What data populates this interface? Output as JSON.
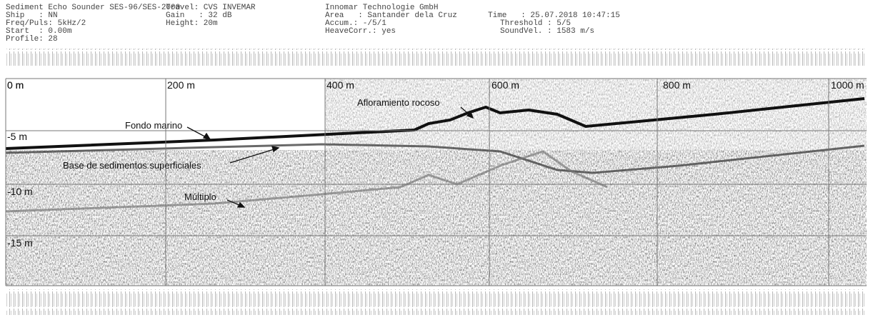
{
  "header": {
    "col1": [
      "Sediment Echo Sounder SES-96/SES-2000",
      "Ship   : NN",
      "Freq/Puls: 5kHz/2",
      "Start  : 0.00m",
      "Profile: 28"
    ],
    "col2": [
      "Travel: CVS INVEMAR",
      "Gain   : 32 dB",
      "Height: 20m"
    ],
    "col3": [
      "Innomar Technologie GmbH",
      "Area   : Santander dela Cruz",
      "Accum.: -/5/1",
      "HeaveCorr.: yes"
    ],
    "col4": [
      "Time   : 25.07.2018 10:47:15",
      "Threshold : 5/5",
      "SoundVel. : 1583 m/s"
    ]
  },
  "distance_labels": [
    "0 m",
    "200 m",
    "400 m",
    "600 m",
    "800 m",
    "1000 m"
  ],
  "depth_labels": [
    "0 m",
    "-5 m",
    "-10 m",
    "-15 m"
  ],
  "annotations": [
    "Fondo marino",
    "Base de sedimentos superficiales",
    "Múltiplo",
    "Afloramiento rocoso"
  ]
}
